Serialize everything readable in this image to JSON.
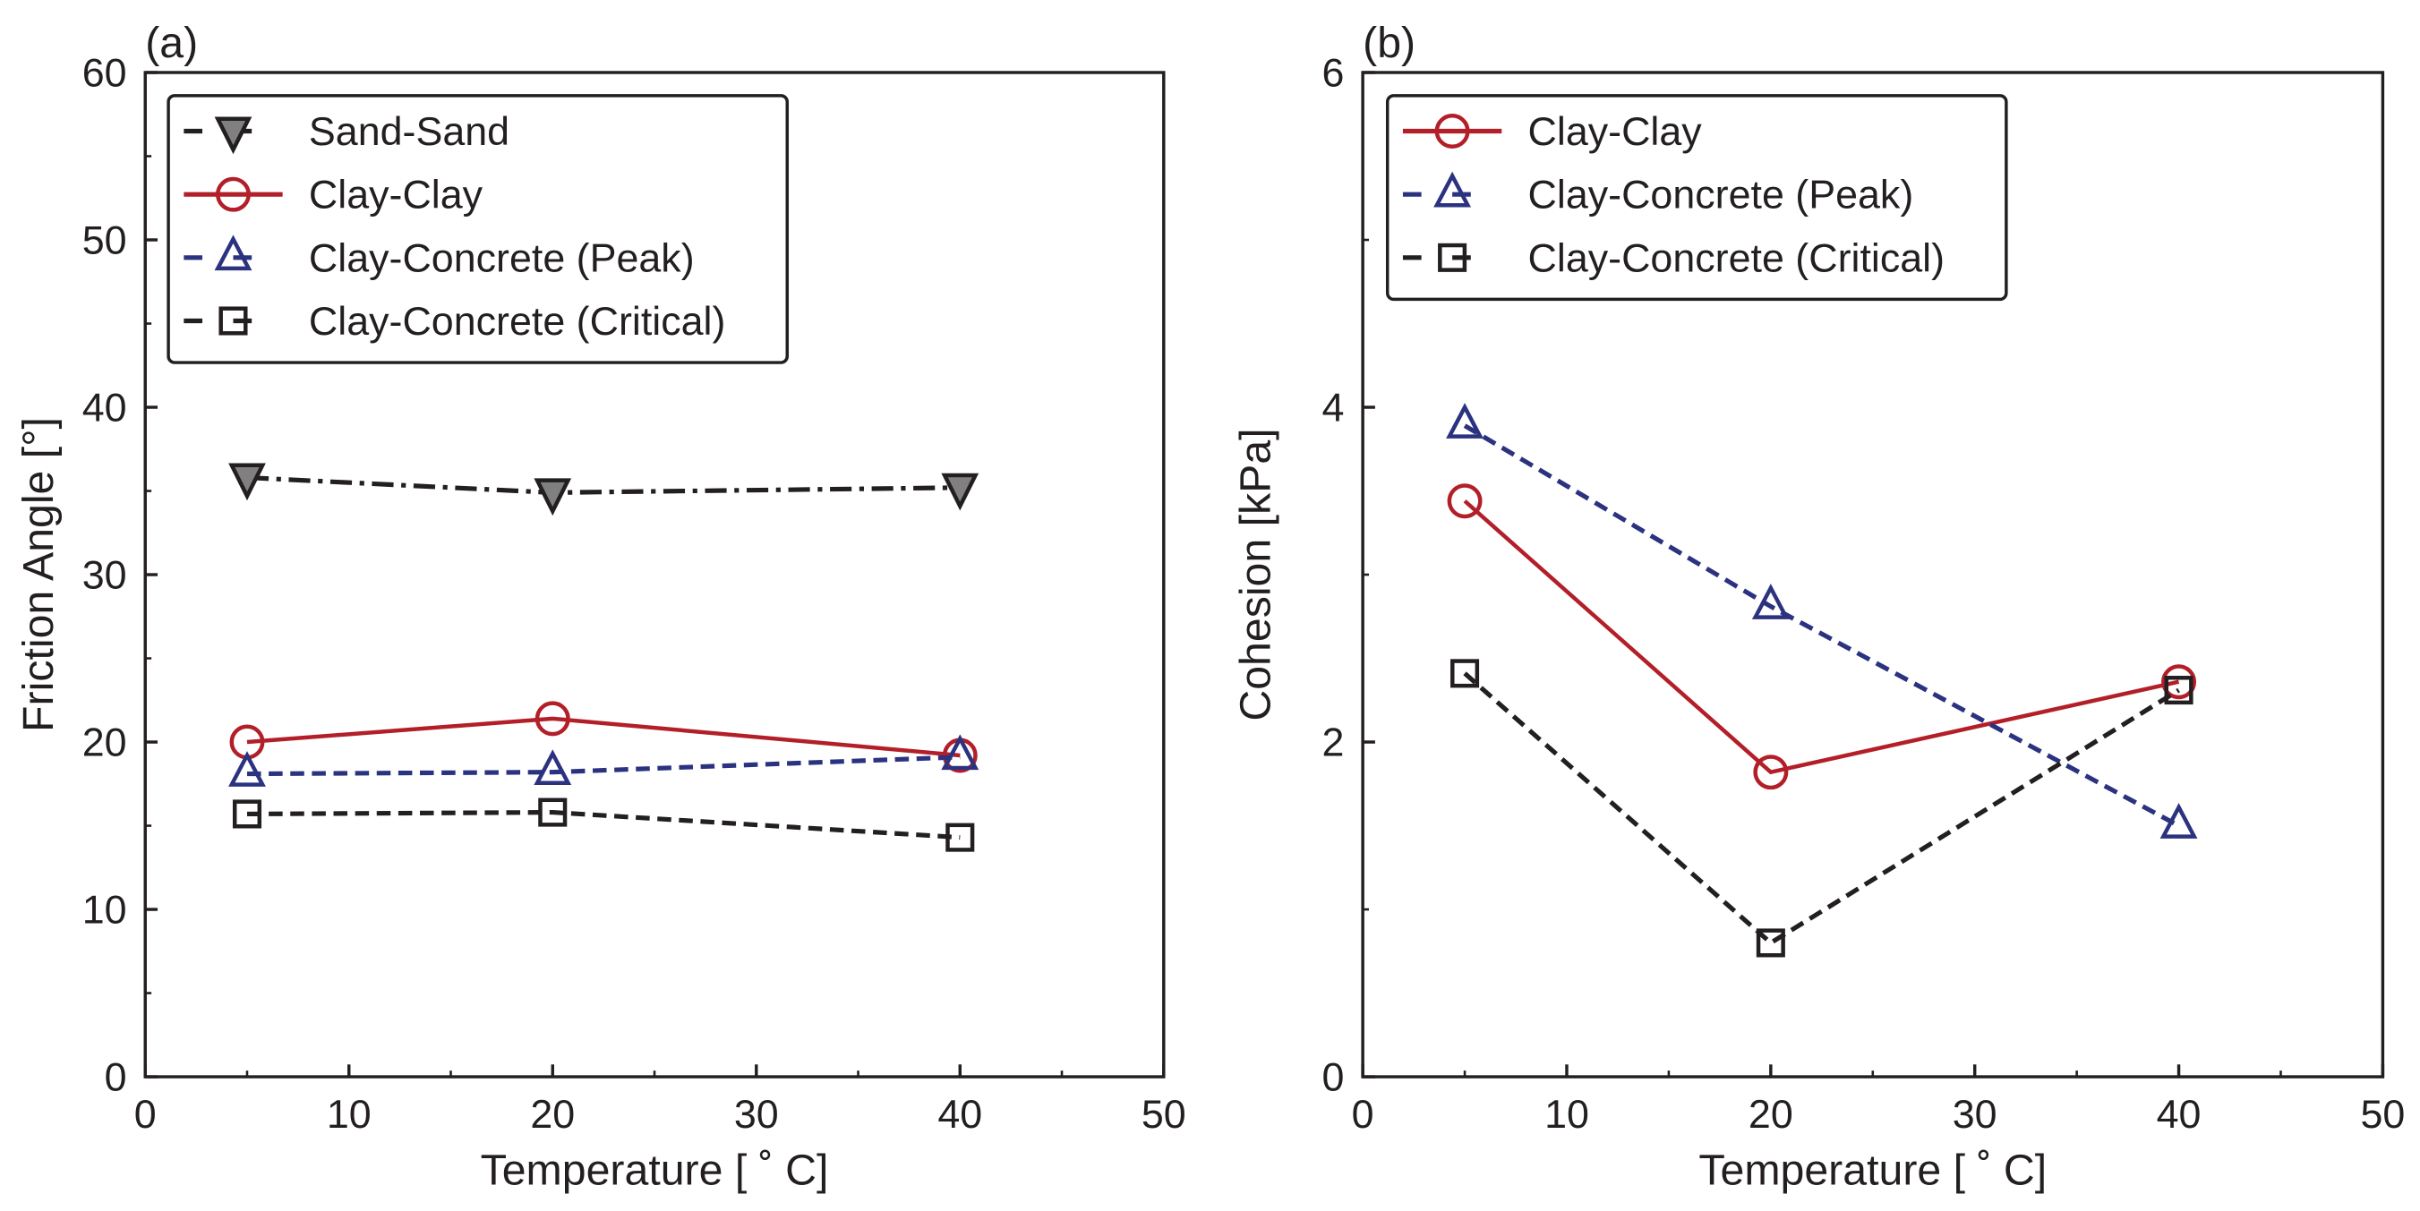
{
  "chart_data": [
    {
      "type": "line",
      "panel_label": "(a)",
      "xlabel": "Temperature [ ˚ C]",
      "ylabel": "Friction Angle [°]",
      "xlim": [
        0,
        50
      ],
      "ylim": [
        0,
        60
      ],
      "xticks": [
        "0",
        "10",
        "20",
        "30",
        "40",
        "50"
      ],
      "yticks": [
        "0",
        "10",
        "20",
        "30",
        "40",
        "50",
        "60"
      ],
      "legend_position": "top-left",
      "x": [
        5,
        20,
        40
      ],
      "series": [
        {
          "name": "Sand-Sand",
          "values": [
            35.8,
            34.9,
            35.2
          ],
          "color": "#231f20",
          "marker": "triangle-down-filled",
          "fill": "#808080",
          "dash": "dashdot"
        },
        {
          "name": "Clay-Clay",
          "values": [
            20.0,
            21.4,
            19.2
          ],
          "color": "#b31f29",
          "marker": "circle",
          "dash": "solid"
        },
        {
          "name": "Clay-Concrete (Peak)",
          "values": [
            18.1,
            18.2,
            19.1
          ],
          "color": "#2b3380",
          "marker": "triangle-up",
          "dash": "dashed"
        },
        {
          "name": "Clay-Concrete (Critical)",
          "values": [
            15.7,
            15.8,
            14.3
          ],
          "color": "#231f20",
          "marker": "square",
          "dash": "dashed"
        }
      ]
    },
    {
      "type": "line",
      "panel_label": "(b)",
      "xlabel": "Temperature [ ˚ C]",
      "ylabel": "Cohesion [kPa]",
      "xlim": [
        0,
        50
      ],
      "ylim": [
        0,
        6
      ],
      "xticks": [
        "0",
        "10",
        "20",
        "30",
        "40",
        "50"
      ],
      "yticks": [
        "0",
        "2",
        "4",
        "6"
      ],
      "legend_position": "top-left",
      "x": [
        5,
        20,
        40
      ],
      "series": [
        {
          "name": "Clay-Clay",
          "values": [
            3.44,
            1.82,
            2.36
          ],
          "color": "#b31f29",
          "marker": "circle",
          "dash": "solid"
        },
        {
          "name": "Clay-Concrete (Peak)",
          "values": [
            3.89,
            2.81,
            1.5
          ],
          "color": "#2b3380",
          "marker": "triangle-up",
          "dash": "dashed"
        },
        {
          "name": "Clay-Concrete (Critical)",
          "values": [
            2.41,
            0.8,
            2.31
          ],
          "color": "#231f20",
          "marker": "square",
          "dash": "dashed"
        }
      ]
    }
  ]
}
